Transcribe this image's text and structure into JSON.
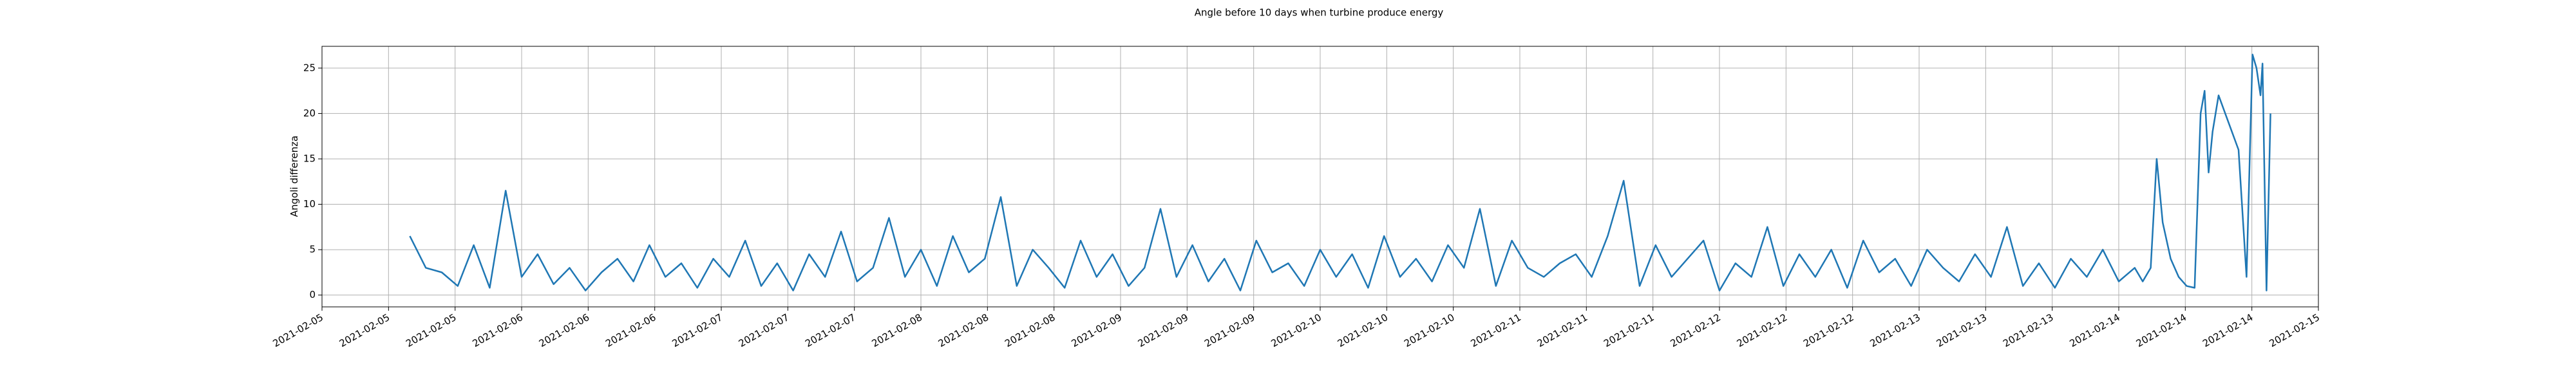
{
  "chart_data": {
    "type": "line",
    "title": "Angle before 10 days when turbine produce energy",
    "ylabel": "Angoli differenza",
    "color": "#1f77b4",
    "grid": true,
    "xlim": [
      5,
      15
    ],
    "ylim": [
      -1.3,
      27.4
    ],
    "yticks": [
      0,
      5,
      10,
      15,
      20,
      25
    ],
    "xticks": [
      {
        "value": 5,
        "label": "2021-02-05"
      },
      {
        "value": 5.3333,
        "label": "2021-02-05"
      },
      {
        "value": 5.6667,
        "label": "2021-02-05"
      },
      {
        "value": 6,
        "label": "2021-02-06"
      },
      {
        "value": 6.3333,
        "label": "2021-02-06"
      },
      {
        "value": 6.6667,
        "label": "2021-02-06"
      },
      {
        "value": 7,
        "label": "2021-02-07"
      },
      {
        "value": 7.3333,
        "label": "2021-02-07"
      },
      {
        "value": 7.6667,
        "label": "2021-02-07"
      },
      {
        "value": 8,
        "label": "2021-02-08"
      },
      {
        "value": 8.3333,
        "label": "2021-02-08"
      },
      {
        "value": 8.6667,
        "label": "2021-02-08"
      },
      {
        "value": 9,
        "label": "2021-02-09"
      },
      {
        "value": 9.3333,
        "label": "2021-02-09"
      },
      {
        "value": 9.6667,
        "label": "2021-02-09"
      },
      {
        "value": 10,
        "label": "2021-02-10"
      },
      {
        "value": 10.3333,
        "label": "2021-02-10"
      },
      {
        "value": 10.6667,
        "label": "2021-02-10"
      },
      {
        "value": 11,
        "label": "2021-02-11"
      },
      {
        "value": 11.3333,
        "label": "2021-02-11"
      },
      {
        "value": 11.6667,
        "label": "2021-02-11"
      },
      {
        "value": 12,
        "label": "2021-02-12"
      },
      {
        "value": 12.3333,
        "label": "2021-02-12"
      },
      {
        "value": 12.6667,
        "label": "2021-02-12"
      },
      {
        "value": 13,
        "label": "2021-02-13"
      },
      {
        "value": 13.3333,
        "label": "2021-02-13"
      },
      {
        "value": 13.6667,
        "label": "2021-02-13"
      },
      {
        "value": 14,
        "label": "2021-02-14"
      },
      {
        "value": 14.3333,
        "label": "2021-02-14"
      },
      {
        "value": 14.6667,
        "label": "2021-02-14"
      },
      {
        "value": 15,
        "label": "2021-02-15"
      }
    ],
    "x": [
      5.44,
      5.52,
      5.6,
      5.68,
      5.76,
      5.84,
      5.92,
      6,
      6.08,
      6.16,
      6.24,
      6.32,
      6.4,
      6.48,
      6.56,
      6.64,
      6.72,
      6.8,
      6.88,
      6.96,
      7.04,
      7.12,
      7.2,
      7.28,
      7.36,
      7.44,
      7.52,
      7.6,
      7.68,
      7.76,
      7.84,
      7.92,
      8,
      8.08,
      8.16,
      8.24,
      8.32,
      8.4,
      8.48,
      8.56,
      8.64,
      8.72,
      8.8,
      8.88,
      8.96,
      9.04,
      9.12,
      9.2,
      9.28,
      9.36,
      9.44,
      9.52,
      9.6,
      9.68,
      9.76,
      9.84,
      9.92,
      10,
      10.08,
      10.16,
      10.24,
      10.32,
      10.4,
      10.48,
      10.56,
      10.64,
      10.72,
      10.8,
      10.88,
      10.96,
      11.04,
      11.12,
      11.2,
      11.28,
      11.36,
      11.44,
      11.52,
      11.6,
      11.68,
      11.76,
      11.84,
      11.92,
      12,
      12.08,
      12.16,
      12.24,
      12.32,
      12.4,
      12.48,
      12.56,
      12.64,
      12.72,
      12.8,
      12.88,
      12.96,
      13.04,
      13.12,
      13.2,
      13.28,
      13.36,
      13.44,
      13.52,
      13.6,
      13.68,
      13.76,
      13.84,
      13.92,
      14,
      14.08,
      14.12,
      14.16,
      14.19,
      14.22,
      14.26,
      14.3,
      14.34,
      14.38,
      14.41,
      14.43,
      14.45,
      14.47,
      14.5,
      14.55,
      14.6,
      14.64,
      14.67,
      14.69,
      14.71,
      14.72,
      14.74,
      14.76
    ],
    "values": [
      6.5,
      3,
      2.5,
      1,
      5.5,
      0.8,
      11.5,
      2,
      4.5,
      1.2,
      3,
      0.5,
      2.5,
      4,
      1.5,
      5.5,
      2,
      3.5,
      0.8,
      4,
      2,
      6,
      1,
      3.5,
      0.5,
      4.5,
      2,
      7,
      1.5,
      3,
      8.5,
      2,
      5,
      1,
      6.5,
      2.5,
      4,
      10.8,
      1,
      5,
      3,
      0.8,
      6,
      2,
      4.5,
      1,
      3,
      9.5,
      2,
      5.5,
      1.5,
      4,
      0.5,
      6,
      2.5,
      3.5,
      1,
      5,
      2,
      4.5,
      0.8,
      6.5,
      2,
      4,
      1.5,
      5.5,
      3,
      9.5,
      1,
      6,
      3,
      2,
      3.5,
      4.5,
      2,
      6.5,
      12.6,
      1,
      5.5,
      2,
      4,
      6,
      0.5,
      3.5,
      2,
      7.5,
      1,
      4.5,
      2,
      5,
      0.8,
      6,
      2.5,
      4,
      1,
      5,
      3,
      1.5,
      4.5,
      2,
      7.5,
      1,
      3.5,
      0.8,
      4,
      2,
      5,
      1.5,
      3,
      1.5,
      3,
      15,
      8,
      4,
      2,
      1,
      0.8,
      20,
      22.5,
      13.5,
      18,
      22,
      19,
      16,
      2,
      26.5,
      25,
      22,
      25.5,
      0.5,
      20
    ]
  }
}
